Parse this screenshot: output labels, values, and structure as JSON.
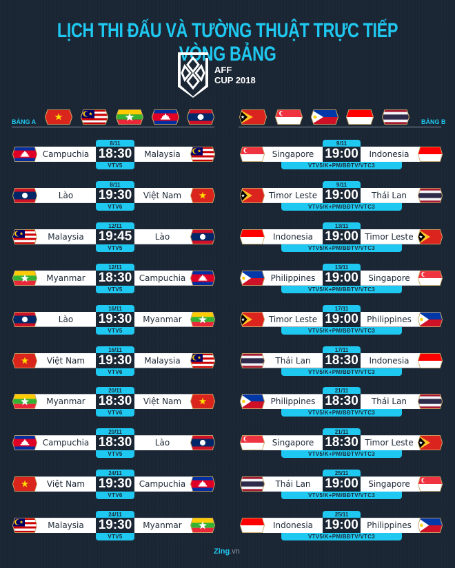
{
  "title": "LỊCH THI ĐẤU VÀ TƯỜNG THUẬT TRỰC TIẾP VÒNG BẢNG",
  "logo": {
    "line1": "AFF",
    "line2": "CUP 2018"
  },
  "group_a": {
    "label": "BẢNG A",
    "flags": [
      "VN",
      "MY",
      "MM",
      "KH",
      "LA"
    ]
  },
  "group_b": {
    "label": "BẢNG B",
    "flags": [
      "TL",
      "SG",
      "PH",
      "ID",
      "TH"
    ]
  },
  "matches_a": [
    {
      "home": "Campuchia",
      "home_flag": "KH",
      "away": "Malaysia",
      "away_flag": "MY",
      "date": "8/11",
      "time": "18:30",
      "channel": "VTV5"
    },
    {
      "home": "Lào",
      "home_flag": "LA",
      "away": "Việt Nam",
      "away_flag": "VN",
      "date": "8/11",
      "time": "19:30",
      "channel": "VTV6"
    },
    {
      "home": "Malaysia",
      "home_flag": "MY",
      "away": "Lào",
      "away_flag": "LA",
      "date": "12/11",
      "time": "19:45",
      "channel": "VTV5"
    },
    {
      "home": "Myanmar",
      "home_flag": "MM",
      "away": "Campuchia",
      "away_flag": "KH",
      "date": "12/11",
      "time": "18:30",
      "channel": "VTV5"
    },
    {
      "home": "Lào",
      "home_flag": "LA",
      "away": "Myanmar",
      "away_flag": "MM",
      "date": "16/11",
      "time": "19:30",
      "channel": "VTV5"
    },
    {
      "home": "Việt Nam",
      "home_flag": "VN",
      "away": "Malaysia",
      "away_flag": "MY",
      "date": "16/11",
      "time": "19:30",
      "channel": "VTV6"
    },
    {
      "home": "Myanmar",
      "home_flag": "MM",
      "away": "Việt Nam",
      "away_flag": "VN",
      "date": "20/11",
      "time": "18:30",
      "channel": "VTV6"
    },
    {
      "home": "Campuchia",
      "home_flag": "KH",
      "away": "Lào",
      "away_flag": "LA",
      "date": "20/11",
      "time": "18:30",
      "channel": "VTV5"
    },
    {
      "home": "Việt Nam",
      "home_flag": "VN",
      "away": "Campuchia",
      "away_flag": "KH",
      "date": "24/11",
      "time": "19:30",
      "channel": "VTV6"
    },
    {
      "home": "Malaysia",
      "home_flag": "MY",
      "away": "Myanmar",
      "away_flag": "MM",
      "date": "24/11",
      "time": "19:30",
      "channel": "VTV5"
    }
  ],
  "matches_b": [
    {
      "home": "Singapore",
      "home_flag": "SG",
      "away": "Indonesia",
      "away_flag": "ID",
      "date": "9/11",
      "time": "19:00",
      "channel": "VTV5/K+PM/BĐTV/VTC3"
    },
    {
      "home": "Timor Leste",
      "home_flag": "TL",
      "away": "Thái Lan",
      "away_flag": "TH",
      "date": "9/11",
      "time": "19:00",
      "channel": "VTV5/K+PM/BĐTV/VTC3"
    },
    {
      "home": "Indonesia",
      "home_flag": "ID",
      "away": "Timor Leste",
      "away_flag": "TL",
      "date": "13/11",
      "time": "19:00",
      "channel": "VTV5/K+PM/BĐTV/VTC3"
    },
    {
      "home": "Philippines",
      "home_flag": "PH",
      "away": "Singapore",
      "away_flag": "SG",
      "date": "13/11",
      "time": "19:00",
      "channel": "VTV5/K+PM/BĐTV/VTC3"
    },
    {
      "home": "Timor Leste",
      "home_flag": "TL",
      "away": "Philippines",
      "away_flag": "PH",
      "date": "17/11",
      "time": "19:00",
      "channel": "VTV5/K+PM/BĐTV/VTC3"
    },
    {
      "home": "Thái Lan",
      "home_flag": "TH",
      "away": "Indonesia",
      "away_flag": "ID",
      "date": "17/11",
      "time": "18:30",
      "channel": "VTV5/K+PM/BĐTV/VTC3"
    },
    {
      "home": "Philippines",
      "home_flag": "PH",
      "away": "Thái Lan",
      "away_flag": "TH",
      "date": "21/11",
      "time": "18:30",
      "channel": "VTV5/K+PM/BĐTV/VTC3"
    },
    {
      "home": "Singapore",
      "home_flag": "SG",
      "away": "Timor Leste",
      "away_flag": "TL",
      "date": "21/11",
      "time": "18:30",
      "channel": "VTV5/K+PM/BĐTV/VTC3"
    },
    {
      "home": "Thái Lan",
      "home_flag": "TH",
      "away": "Singapore",
      "away_flag": "SG",
      "date": "25/11",
      "time": "19:00",
      "channel": "VTV5/K+PM/BĐTV/VTC3"
    },
    {
      "home": "Indonesia",
      "home_flag": "ID",
      "away": "Philippines",
      "away_flag": "PH",
      "date": "25/11",
      "time": "19:00",
      "channel": "VTV5/K+PM/BĐTV/VTC3"
    }
  ],
  "footer": {
    "brand": "Zing",
    "suffix": ".vn"
  },
  "colors": {
    "background": "#1b2634",
    "accent": "#1fc8f0",
    "bar": "#ffffff"
  }
}
